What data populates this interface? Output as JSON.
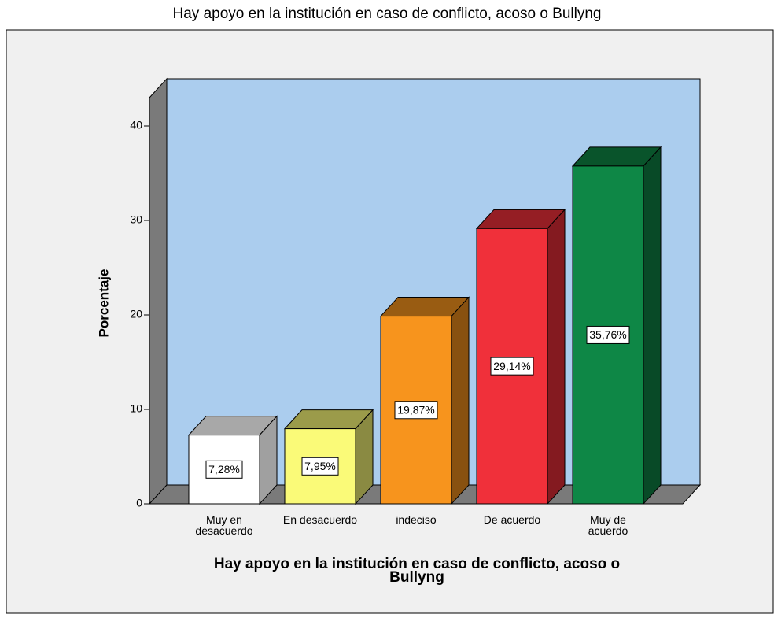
{
  "chart_data": {
    "type": "bar3d",
    "title": "Hay apoyo en la institución en caso de conflicto, acoso o Bullyng",
    "x_label": "Hay apoyo en la institución en caso de conflicto, acoso o\nBullyng",
    "y_label": "Porcentaje",
    "categories": [
      "Muy en\ndesacuerdo",
      "En desacuerdo",
      "indeciso",
      "De acuerdo",
      "Muy  de\nacuerdo"
    ],
    "values": [
      7.28,
      7.95,
      19.87,
      29.14,
      35.76
    ],
    "value_labels": [
      "7,28%",
      "7,95%",
      "19,87%",
      "29,14%",
      "35,76%"
    ],
    "colors": [
      "#ffffff",
      "#fafa78",
      "#f7941d",
      "#f0303a",
      "#0e8746"
    ],
    "ylim": [
      0,
      43
    ],
    "yticks": [
      0,
      10,
      20,
      30,
      40
    ],
    "grid": false
  }
}
